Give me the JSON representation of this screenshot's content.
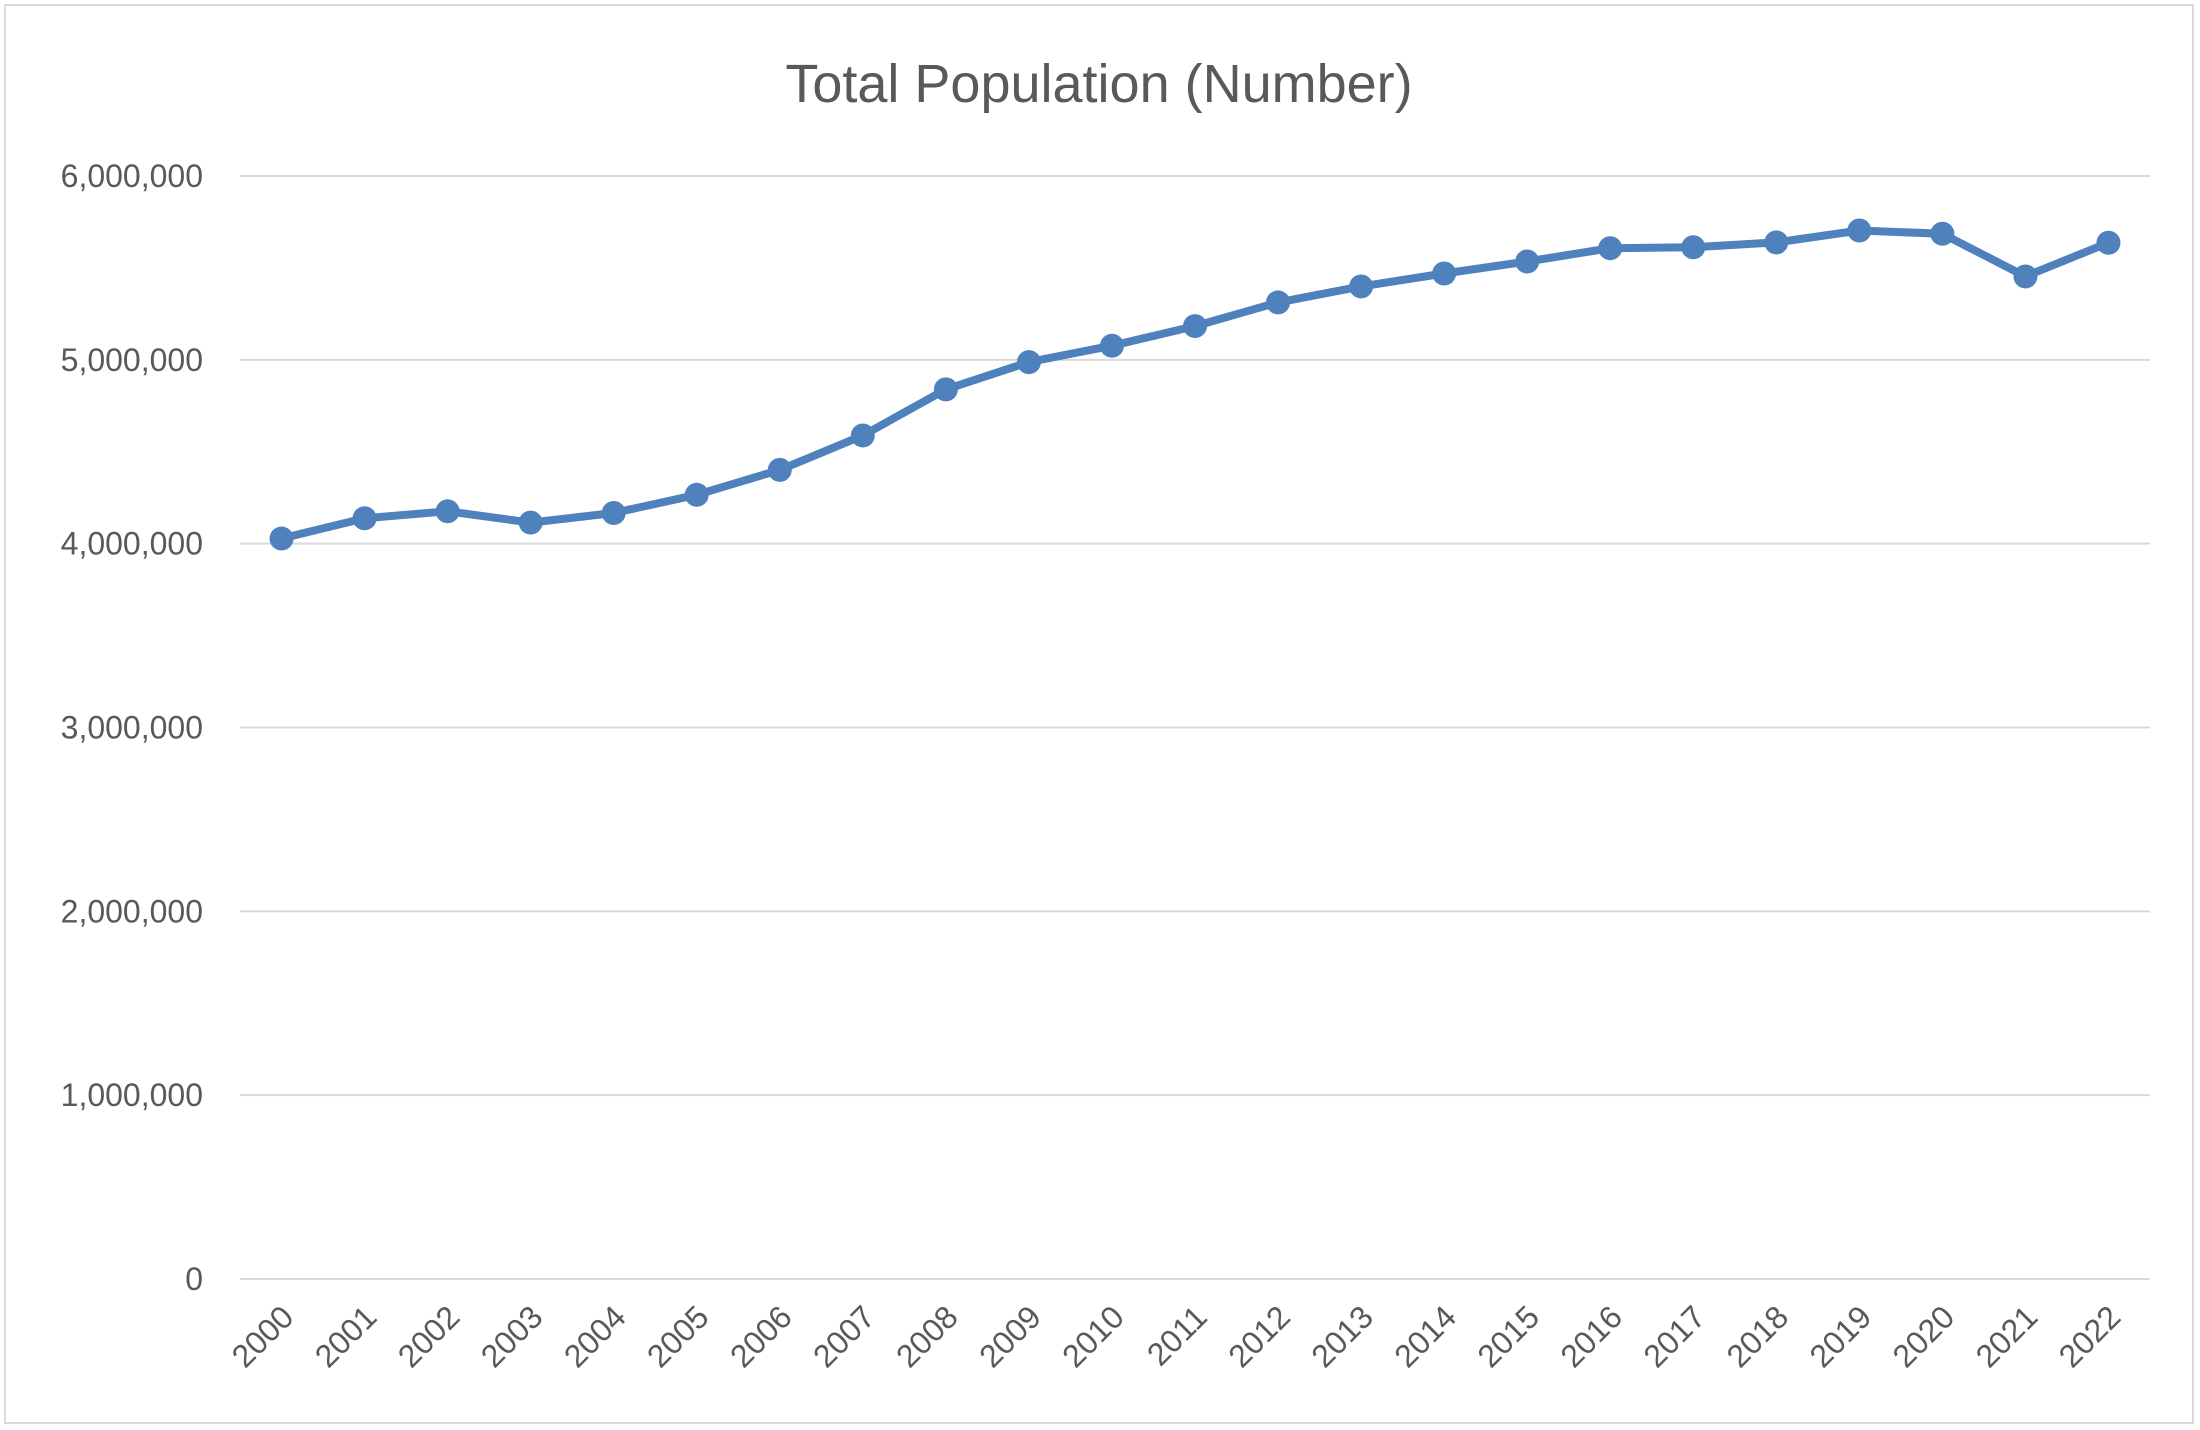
{
  "chart_data": {
    "type": "line",
    "title": "Total Population (Number)",
    "xlabel": "",
    "ylabel": "",
    "x": [
      "2000",
      "2001",
      "2002",
      "2003",
      "2004",
      "2005",
      "2006",
      "2007",
      "2008",
      "2009",
      "2010",
      "2011",
      "2012",
      "2013",
      "2014",
      "2015",
      "2016",
      "2017",
      "2018",
      "2019",
      "2020",
      "2021",
      "2022"
    ],
    "series": [
      {
        "values": [
          4027900,
          4138000,
          4176000,
          4114800,
          4166700,
          4265800,
          4401400,
          4588600,
          4839400,
          4987600,
          5076700,
          5183700,
          5312400,
          5399200,
          5469700,
          5535000,
          5607300,
          5612300,
          5638700,
          5703600,
          5685800,
          5453600,
          5637000
        ],
        "color": "#4f81bd"
      }
    ],
    "ylim": [
      0,
      6000000
    ],
    "yticks": [
      0,
      1000000,
      2000000,
      3000000,
      4000000,
      5000000,
      6000000
    ],
    "ytick_labels": [
      "0",
      "1,000,000",
      "2,000,000",
      "3,000,000",
      "4,000,000",
      "5,000,000",
      "6,000,000"
    ],
    "grid": true,
    "legend": "none",
    "gridline_color": "#d9d9d9"
  }
}
